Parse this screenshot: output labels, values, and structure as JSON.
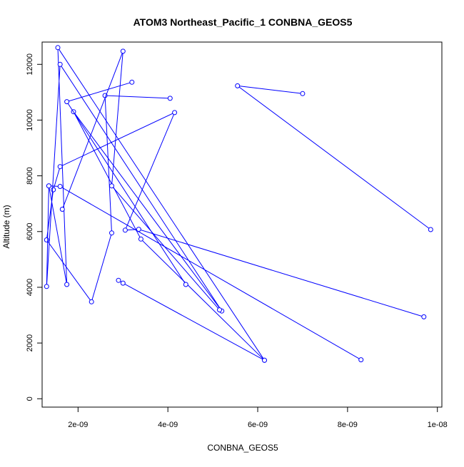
{
  "chart_data": {
    "type": "line",
    "title": "ATOM3 Northeast_Pacific_1 CONBNA_GEOS5",
    "xlabel": "CONBNA_GEOS5",
    "ylabel": "Altitude (m)",
    "xlim": [
      1.2e-09,
      1.01e-08
    ],
    "ylim": [
      -300,
      12800
    ],
    "x_ticks": [
      2e-09,
      4e-09,
      6e-09,
      8e-09,
      1e-08
    ],
    "x_tick_labels": [
      "2e-09",
      "4e-09",
      "6e-09",
      "8e-09",
      "1e-08"
    ],
    "y_ticks": [
      0,
      2000,
      4000,
      6000,
      8000,
      10000,
      12000
    ],
    "y_tick_labels": [
      "0",
      "2000",
      "4000",
      "6000",
      "8000",
      "10000",
      "12000"
    ],
    "grid": false,
    "series_color": "#0000ff",
    "series": [
      {
        "x": [
          9.85e-09,
          5.55e-09,
          7e-09
        ],
        "y": [
          6070,
          11230,
          10950
        ]
      },
      {
        "x": [
          9.7e-09,
          3.35e-09,
          3.05e-09,
          4.15e-09,
          1.6e-09,
          1.45e-09,
          1.3e-09,
          2.3e-09,
          2.75e-09,
          2.6e-09,
          4.05e-09
        ],
        "y": [
          2940,
          6080,
          6050,
          10270,
          8330,
          7500,
          5700,
          3480,
          5950,
          10880,
          10780
        ]
      },
      {
        "x": [
          8.3e-09,
          1.6e-09,
          1.35e-09,
          1.3e-09,
          1.6e-09,
          5.2e-09,
          1.9e-09,
          3.4e-09,
          6.15e-09,
          1.55e-09,
          1.75e-09,
          1.35e-09
        ],
        "y": [
          1400,
          7620,
          7640,
          4030,
          12000,
          3150,
          10300,
          5730,
          1380,
          12600,
          4100,
          7640
        ]
      },
      {
        "x": [
          4.4e-09,
          1.75e-09,
          3.2e-09
        ],
        "y": [
          4100,
          10660,
          11360
        ]
      },
      {
        "x": [
          5.15e-09,
          2.75e-09,
          3e-09,
          1.65e-09
        ],
        "y": [
          3190,
          7640,
          12470,
          6800
        ]
      },
      {
        "x": [
          6.15e-09,
          3e-09,
          2.9e-09
        ],
        "y": [
          1380,
          4150,
          4250
        ]
      }
    ]
  }
}
